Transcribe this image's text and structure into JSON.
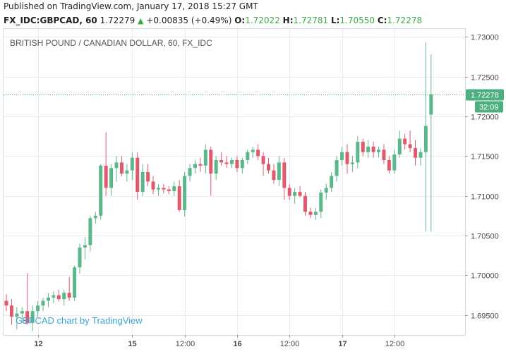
{
  "published": "Published on TradingView.com, January 17, 2018 15:27 GMT",
  "quote": {
    "symbol": "FX_IDC:GBPCAD, 60",
    "last": "1.72279",
    "change": "+0.00835 (+0.49%)",
    "o_label": "O:",
    "o": "1.72022",
    "h_label": "H:",
    "h": "1.72781",
    "l_label": "L:",
    "l": "1.70550",
    "c_label": "C:",
    "c": "1.72278"
  },
  "colors": {
    "up": "#5cb88a",
    "down": "#e05a6e",
    "grid": "#e9edf2",
    "axis_text": "#4a4a4a",
    "price_line": "#3cab6a",
    "watermark": "#3ba3d8"
  },
  "chart_data": {
    "type": "candlestick",
    "title": "BRITISH POUND / CANADIAN DOLLAR, 60, FX_IDC",
    "watermark": "GBPCAD chart by TradingView",
    "ylim": [
      1.6925,
      1.731
    ],
    "y_ticks": [
      "1.73000",
      "1.72500",
      "1.72000",
      "1.71500",
      "1.71000",
      "1.70500",
      "1.70000",
      "1.69500"
    ],
    "x_ticks": [
      {
        "label": "12",
        "index": 6
      },
      {
        "label": "15",
        "index": 24
      },
      {
        "label": "12:00",
        "index": 34
      },
      {
        "label": "16",
        "index": 44
      },
      {
        "label": "12:00",
        "index": 54
      },
      {
        "label": "17",
        "index": 64
      },
      {
        "label": "12:00",
        "index": 74
      }
    ],
    "last_price_label": "1.72278",
    "countdown_label": "32:09",
    "candles": [
      {
        "o": 1.6968,
        "h": 1.6976,
        "l": 1.6955,
        "c": 1.6962
      },
      {
        "o": 1.6962,
        "h": 1.697,
        "l": 1.6938,
        "c": 1.6948
      },
      {
        "o": 1.6948,
        "h": 1.696,
        "l": 1.6932,
        "c": 1.6952
      },
      {
        "o": 1.6952,
        "h": 1.696,
        "l": 1.694,
        "c": 1.6955
      },
      {
        "o": 1.6955,
        "h": 1.7003,
        "l": 1.6938,
        "c": 1.694
      },
      {
        "o": 1.694,
        "h": 1.6962,
        "l": 1.693,
        "c": 1.6955
      },
      {
        "o": 1.6955,
        "h": 1.6968,
        "l": 1.6948,
        "c": 1.6962
      },
      {
        "o": 1.6962,
        "h": 1.6972,
        "l": 1.6955,
        "c": 1.6968
      },
      {
        "o": 1.6968,
        "h": 1.6978,
        "l": 1.696,
        "c": 1.6972
      },
      {
        "o": 1.6972,
        "h": 1.698,
        "l": 1.6965,
        "c": 1.6975
      },
      {
        "o": 1.6975,
        "h": 1.6982,
        "l": 1.6967,
        "c": 1.697
      },
      {
        "o": 1.697,
        "h": 1.6982,
        "l": 1.6962,
        "c": 1.6978
      },
      {
        "o": 1.6978,
        "h": 1.6998,
        "l": 1.6968,
        "c": 1.6972
      },
      {
        "o": 1.6972,
        "h": 1.7012,
        "l": 1.6968,
        "c": 1.701
      },
      {
        "o": 1.701,
        "h": 1.704,
        "l": 1.7002,
        "c": 1.7035
      },
      {
        "o": 1.7035,
        "h": 1.7048,
        "l": 1.702,
        "c": 1.7038
      },
      {
        "o": 1.7038,
        "h": 1.7075,
        "l": 1.703,
        "c": 1.7072
      },
      {
        "o": 1.7072,
        "h": 1.708,
        "l": 1.7065,
        "c": 1.7075
      },
      {
        "o": 1.7075,
        "h": 1.714,
        "l": 1.707,
        "c": 1.7138
      },
      {
        "o": 1.7138,
        "h": 1.718,
        "l": 1.71,
        "c": 1.711
      },
      {
        "o": 1.711,
        "h": 1.714,
        "l": 1.71,
        "c": 1.7135
      },
      {
        "o": 1.7135,
        "h": 1.715,
        "l": 1.7118,
        "c": 1.7142
      },
      {
        "o": 1.7142,
        "h": 1.715,
        "l": 1.7125,
        "c": 1.7128
      },
      {
        "o": 1.7128,
        "h": 1.714,
        "l": 1.7118,
        "c": 1.7132
      },
      {
        "o": 1.7132,
        "h": 1.7155,
        "l": 1.712,
        "c": 1.7148
      },
      {
        "o": 1.7148,
        "h": 1.7155,
        "l": 1.7095,
        "c": 1.7105
      },
      {
        "o": 1.7105,
        "h": 1.714,
        "l": 1.71,
        "c": 1.713
      },
      {
        "o": 1.713,
        "h": 1.714,
        "l": 1.7112,
        "c": 1.7118
      },
      {
        "o": 1.7118,
        "h": 1.7125,
        "l": 1.7102,
        "c": 1.7108
      },
      {
        "o": 1.7108,
        "h": 1.7115,
        "l": 1.71,
        "c": 1.711
      },
      {
        "o": 1.711,
        "h": 1.7115,
        "l": 1.7103,
        "c": 1.7108
      },
      {
        "o": 1.7108,
        "h": 1.7112,
        "l": 1.7102,
        "c": 1.7106
      },
      {
        "o": 1.7106,
        "h": 1.7118,
        "l": 1.71,
        "c": 1.7112
      },
      {
        "o": 1.7112,
        "h": 1.712,
        "l": 1.708,
        "c": 1.7082
      },
      {
        "o": 1.7082,
        "h": 1.713,
        "l": 1.7074,
        "c": 1.7125
      },
      {
        "o": 1.7125,
        "h": 1.714,
        "l": 1.7118,
        "c": 1.7135
      },
      {
        "o": 1.7135,
        "h": 1.7145,
        "l": 1.7128,
        "c": 1.714
      },
      {
        "o": 1.714,
        "h": 1.7148,
        "l": 1.713,
        "c": 1.7138
      },
      {
        "o": 1.7138,
        "h": 1.7165,
        "l": 1.7128,
        "c": 1.7158
      },
      {
        "o": 1.7158,
        "h": 1.7162,
        "l": 1.71,
        "c": 1.7128
      },
      {
        "o": 1.7128,
        "h": 1.715,
        "l": 1.712,
        "c": 1.7145
      },
      {
        "o": 1.7145,
        "h": 1.7155,
        "l": 1.7138,
        "c": 1.7142
      },
      {
        "o": 1.7142,
        "h": 1.715,
        "l": 1.7135,
        "c": 1.714
      },
      {
        "o": 1.714,
        "h": 1.7148,
        "l": 1.7135,
        "c": 1.7145
      },
      {
        "o": 1.7145,
        "h": 1.715,
        "l": 1.713,
        "c": 1.7135
      },
      {
        "o": 1.7135,
        "h": 1.7148,
        "l": 1.7128,
        "c": 1.7145
      },
      {
        "o": 1.7145,
        "h": 1.7158,
        "l": 1.714,
        "c": 1.7155
      },
      {
        "o": 1.7155,
        "h": 1.7162,
        "l": 1.7148,
        "c": 1.7158
      },
      {
        "o": 1.7158,
        "h": 1.7165,
        "l": 1.7145,
        "c": 1.715
      },
      {
        "o": 1.715,
        "h": 1.7155,
        "l": 1.7125,
        "c": 1.714
      },
      {
        "o": 1.714,
        "h": 1.7148,
        "l": 1.7128,
        "c": 1.7132
      },
      {
        "o": 1.7132,
        "h": 1.714,
        "l": 1.7115,
        "c": 1.712
      },
      {
        "o": 1.712,
        "h": 1.715,
        "l": 1.7112,
        "c": 1.7142
      },
      {
        "o": 1.7142,
        "h": 1.7148,
        "l": 1.7095,
        "c": 1.711
      },
      {
        "o": 1.711,
        "h": 1.7115,
        "l": 1.7095,
        "c": 1.71
      },
      {
        "o": 1.71,
        "h": 1.711,
        "l": 1.709,
        "c": 1.7105
      },
      {
        "o": 1.7105,
        "h": 1.7112,
        "l": 1.7098,
        "c": 1.71
      },
      {
        "o": 1.71,
        "h": 1.7105,
        "l": 1.7075,
        "c": 1.708
      },
      {
        "o": 1.708,
        "h": 1.7085,
        "l": 1.7072,
        "c": 1.7076
      },
      {
        "o": 1.7076,
        "h": 1.7085,
        "l": 1.707,
        "c": 1.708
      },
      {
        "o": 1.708,
        "h": 1.7108,
        "l": 1.7072,
        "c": 1.7104
      },
      {
        "o": 1.7104,
        "h": 1.7115,
        "l": 1.7095,
        "c": 1.711
      },
      {
        "o": 1.711,
        "h": 1.713,
        "l": 1.7105,
        "c": 1.7125
      },
      {
        "o": 1.7125,
        "h": 1.715,
        "l": 1.7118,
        "c": 1.7145
      },
      {
        "o": 1.7145,
        "h": 1.7162,
        "l": 1.7138,
        "c": 1.7155
      },
      {
        "o": 1.7155,
        "h": 1.7165,
        "l": 1.7128,
        "c": 1.714
      },
      {
        "o": 1.714,
        "h": 1.715,
        "l": 1.713,
        "c": 1.7142
      },
      {
        "o": 1.7142,
        "h": 1.7175,
        "l": 1.7135,
        "c": 1.7168
      },
      {
        "o": 1.7168,
        "h": 1.7172,
        "l": 1.715,
        "c": 1.7155
      },
      {
        "o": 1.7155,
        "h": 1.717,
        "l": 1.7148,
        "c": 1.7162
      },
      {
        "o": 1.7162,
        "h": 1.7168,
        "l": 1.7148,
        "c": 1.7155
      },
      {
        "o": 1.7155,
        "h": 1.7162,
        "l": 1.7148,
        "c": 1.7158
      },
      {
        "o": 1.7158,
        "h": 1.7165,
        "l": 1.714,
        "c": 1.7145
      },
      {
        "o": 1.7145,
        "h": 1.715,
        "l": 1.7128,
        "c": 1.7132
      },
      {
        "o": 1.7132,
        "h": 1.7158,
        "l": 1.7128,
        "c": 1.7152
      },
      {
        "o": 1.7152,
        "h": 1.7182,
        "l": 1.7148,
        "c": 1.7172
      },
      {
        "o": 1.7172,
        "h": 1.7178,
        "l": 1.7158,
        "c": 1.7165
      },
      {
        "o": 1.7165,
        "h": 1.7182,
        "l": 1.7155,
        "c": 1.716
      },
      {
        "o": 1.716,
        "h": 1.717,
        "l": 1.7138,
        "c": 1.7148
      },
      {
        "o": 1.7148,
        "h": 1.716,
        "l": 1.7138,
        "c": 1.7155
      },
      {
        "o": 1.7155,
        "h": 1.7293,
        "l": 1.7055,
        "c": 1.7188
      },
      {
        "o": 1.72022,
        "h": 1.72781,
        "l": 1.7055,
        "c": 1.72278
      }
    ]
  }
}
